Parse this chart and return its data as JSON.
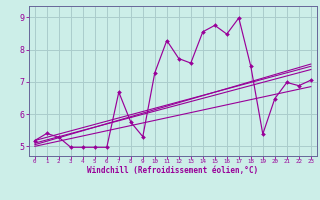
{
  "xlabel": "Windchill (Refroidissement éolien,°C)",
  "bg_color": "#cceee8",
  "grid_color": "#aacccc",
  "line_color": "#990099",
  "spine_color": "#666699",
  "xlim": [
    -0.5,
    23.5
  ],
  "ylim": [
    4.7,
    9.35
  ],
  "xticks": [
    0,
    1,
    2,
    3,
    4,
    5,
    6,
    7,
    8,
    9,
    10,
    11,
    12,
    13,
    14,
    15,
    16,
    17,
    18,
    19,
    20,
    21,
    22,
    23
  ],
  "yticks": [
    5,
    6,
    7,
    8,
    9
  ],
  "zigzag_x": [
    0,
    1,
    2,
    3,
    4,
    5,
    6,
    7,
    8,
    9,
    10,
    11,
    12,
    13,
    14,
    15,
    16,
    17,
    18,
    19,
    20,
    21,
    22,
    23
  ],
  "zigzag_y": [
    5.18,
    5.4,
    5.28,
    4.97,
    4.97,
    4.97,
    4.97,
    6.68,
    5.75,
    5.3,
    7.28,
    8.28,
    7.72,
    7.58,
    8.55,
    8.75,
    8.48,
    8.98,
    7.48,
    5.38,
    6.48,
    6.98,
    6.88,
    7.05
  ],
  "line1_x": [
    0,
    23
  ],
  "line1_y": [
    5.18,
    7.48
  ],
  "line2_x": [
    0,
    23
  ],
  "line2_y": [
    5.1,
    7.38
  ],
  "line3_x": [
    0,
    23
  ],
  "line3_y": [
    5.05,
    7.55
  ],
  "line4_x": [
    0,
    23
  ],
  "line4_y": [
    5.0,
    6.85
  ]
}
